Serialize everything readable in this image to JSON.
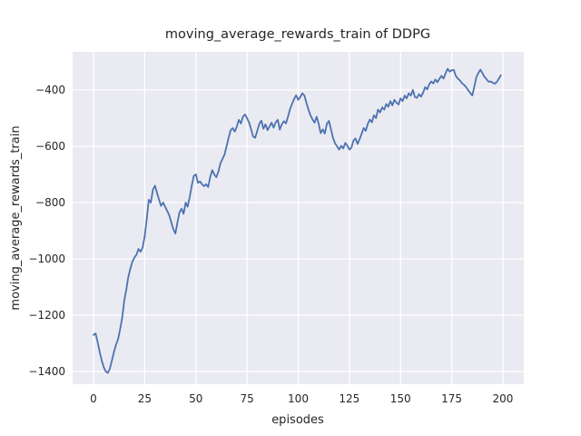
{
  "figure": {
    "background_color": "#ffffff",
    "plot_background_color": "#eaeaf2",
    "grid_color": "#ffffff",
    "line_color": "#4c72b0",
    "text_color": "#262626"
  },
  "chart_data": {
    "type": "line",
    "title": "moving_average_rewards_train of DDPG",
    "xlabel": "episodes",
    "ylabel": "moving_average_rewards_train",
    "legend": null,
    "grid": true,
    "xlim": [
      -10.2,
      210.2
    ],
    "ylim": [
      -1445.2,
      -264.5
    ],
    "x_ticks": [
      0,
      25,
      50,
      75,
      100,
      125,
      150,
      175,
      200
    ],
    "x_tick_labels": [
      "0",
      "25",
      "50",
      "75",
      "100",
      "125",
      "150",
      "175",
      "200"
    ],
    "y_ticks": [
      -400,
      -600,
      -800,
      -1000,
      -1200,
      -1400
    ],
    "y_tick_labels": [
      "−400",
      "−600",
      "−800",
      "−1000",
      "−1200",
      "−1400"
    ],
    "series": [
      {
        "name": "moving_average_rewards_train",
        "x_start": 0,
        "x_step": 1,
        "values": [
          -1270,
          -1265,
          -1295,
          -1330,
          -1360,
          -1385,
          -1400,
          -1405,
          -1390,
          -1360,
          -1330,
          -1305,
          -1285,
          -1250,
          -1210,
          -1150,
          -1110,
          -1065,
          -1035,
          -1010,
          -995,
          -985,
          -965,
          -975,
          -960,
          -920,
          -860,
          -790,
          -800,
          -755,
          -740,
          -765,
          -790,
          -812,
          -800,
          -815,
          -830,
          -845,
          -870,
          -895,
          -910,
          -870,
          -835,
          -822,
          -840,
          -800,
          -815,
          -780,
          -740,
          -705,
          -700,
          -730,
          -725,
          -735,
          -742,
          -735,
          -745,
          -710,
          -685,
          -700,
          -710,
          -690,
          -661,
          -645,
          -630,
          -600,
          -570,
          -543,
          -535,
          -548,
          -530,
          -506,
          -519,
          -495,
          -487,
          -500,
          -516,
          -540,
          -565,
          -570,
          -545,
          -520,
          -509,
          -538,
          -522,
          -543,
          -530,
          -516,
          -534,
          -515,
          -506,
          -541,
          -522,
          -511,
          -519,
          -495,
          -468,
          -450,
          -432,
          -419,
          -435,
          -425,
          -412,
          -420,
          -445,
          -470,
          -490,
          -505,
          -516,
          -495,
          -520,
          -554,
          -540,
          -555,
          -520,
          -510,
          -540,
          -570,
          -590,
          -600,
          -612,
          -598,
          -608,
          -588,
          -598,
          -612,
          -605,
          -580,
          -572,
          -592,
          -575,
          -555,
          -535,
          -545,
          -520,
          -505,
          -515,
          -490,
          -500,
          -470,
          -480,
          -462,
          -470,
          -450,
          -460,
          -440,
          -455,
          -435,
          -445,
          -452,
          -430,
          -440,
          -420,
          -430,
          -412,
          -420,
          -400,
          -425,
          -428,
          -415,
          -424,
          -410,
          -390,
          -398,
          -380,
          -370,
          -377,
          -363,
          -373,
          -360,
          -350,
          -360,
          -340,
          -325,
          -335,
          -330,
          -329,
          -350,
          -360,
          -366,
          -376,
          -382,
          -390,
          -401,
          -410,
          -420,
          -390,
          -355,
          -340,
          -328,
          -340,
          -354,
          -362,
          -371,
          -370,
          -374,
          -378,
          -372,
          -360,
          -348
        ]
      }
    ]
  }
}
